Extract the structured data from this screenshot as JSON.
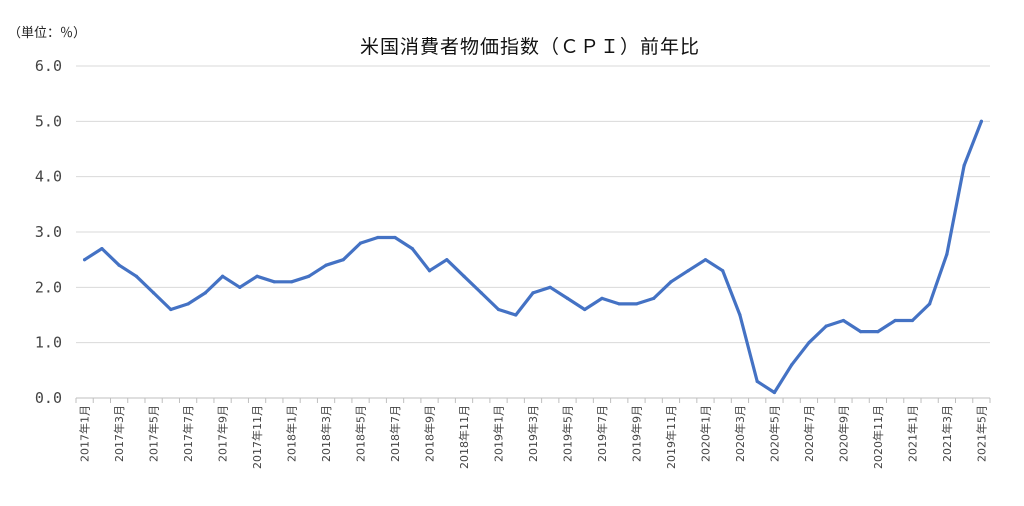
{
  "unit_label": "（単位：％）",
  "chart_data": {
    "type": "line",
    "title": "米国消費者物価指数（ＣＰＩ）前年比",
    "ylim": [
      0,
      6
    ],
    "y_ticks": [
      "0.0",
      "1.0",
      "2.0",
      "3.0",
      "4.0",
      "5.0",
      "6.0"
    ],
    "x_tick_labels": [
      "2017年1月",
      "2017年3月",
      "2017年5月",
      "2017年7月",
      "2017年9月",
      "2017年11月",
      "2018年1月",
      "2018年3月",
      "2018年5月",
      "2018年7月",
      "2018年9月",
      "2018年11月",
      "2019年1月",
      "2019年3月",
      "2019年5月",
      "2019年7月",
      "2019年9月",
      "2019年11月",
      "2020年1月",
      "2020年3月",
      "2020年5月",
      "2020年7月",
      "2020年9月",
      "2020年11月",
      "2021年1月",
      "2021年3月",
      "2021年5月"
    ],
    "grid": true,
    "line_color": "#4472C4",
    "series": [
      {
        "values": [
          2.5,
          2.7,
          2.4,
          2.2,
          1.9,
          1.6,
          1.7,
          1.9,
          2.2,
          2.0,
          2.2,
          2.1,
          2.1,
          2.2,
          2.4,
          2.5,
          2.8,
          2.9,
          2.9,
          2.7,
          2.3,
          2.5,
          2.2,
          1.9,
          1.6,
          1.5,
          1.9,
          2.0,
          1.8,
          1.6,
          1.8,
          1.7,
          1.7,
          1.8,
          2.1,
          2.3,
          2.5,
          2.3,
          1.5,
          0.3,
          0.1,
          0.6,
          1.0,
          1.3,
          1.4,
          1.2,
          1.2,
          1.4,
          1.4,
          1.7,
          2.6,
          4.2,
          5.0
        ]
      }
    ]
  }
}
